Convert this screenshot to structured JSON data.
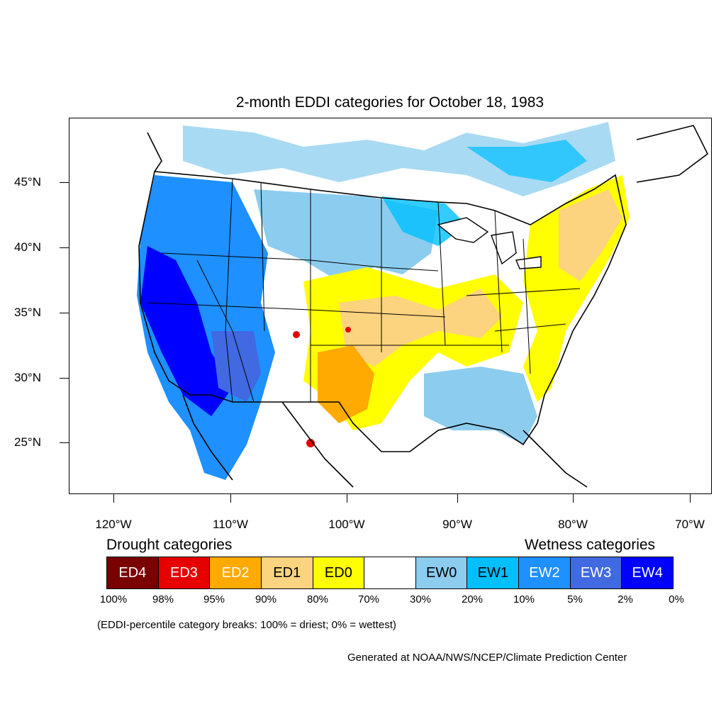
{
  "title": "2-month EDDI categories for October 18, 1983",
  "lat_labels": [
    "45°N",
    "40°N",
    "35°N",
    "30°N",
    "25°N"
  ],
  "lon_labels": [
    "120°W",
    "110°W",
    "100°W",
    "90°W",
    "80°W",
    "70°W"
  ],
  "drought_heading": "Drought categories",
  "wetness_heading": "Wetness categories",
  "legend": [
    {
      "label": "ED4",
      "color": "#7a0000",
      "text_color": "#ffffff"
    },
    {
      "label": "ED3",
      "color": "#e60000",
      "text_color": "#ffffff"
    },
    {
      "label": "ED2",
      "color": "#ffaa00",
      "text_color": "#ffffff"
    },
    {
      "label": "ED1",
      "color": "#fcd37f",
      "text_color": "#000000"
    },
    {
      "label": "ED0",
      "color": "#ffff00",
      "text_color": "#000000"
    },
    {
      "label": "",
      "color": "#ffffff",
      "text_color": "#000000"
    },
    {
      "label": "EW0",
      "color": "#8ccdef",
      "text_color": "#000000"
    },
    {
      "label": "EW1",
      "color": "#00bfff",
      "text_color": "#000000"
    },
    {
      "label": "EW2",
      "color": "#1e90ff",
      "text_color": "#ffffff"
    },
    {
      "label": "EW3",
      "color": "#4169e1",
      "text_color": "#ffffff"
    },
    {
      "label": "EW4",
      "color": "#0000ff",
      "text_color": "#ffffff"
    }
  ],
  "percentiles": [
    "100%",
    "98%",
    "95%",
    "90%",
    "80%",
    "70%",
    "30%",
    "20%",
    "10%",
    "5%",
    "2%",
    "0%"
  ],
  "note": "(EDDI-percentile category breaks: 100% = driest; 0% = wettest)",
  "credit": "Generated at NOAA/NWS/NCEP/Climate Prediction Center"
}
